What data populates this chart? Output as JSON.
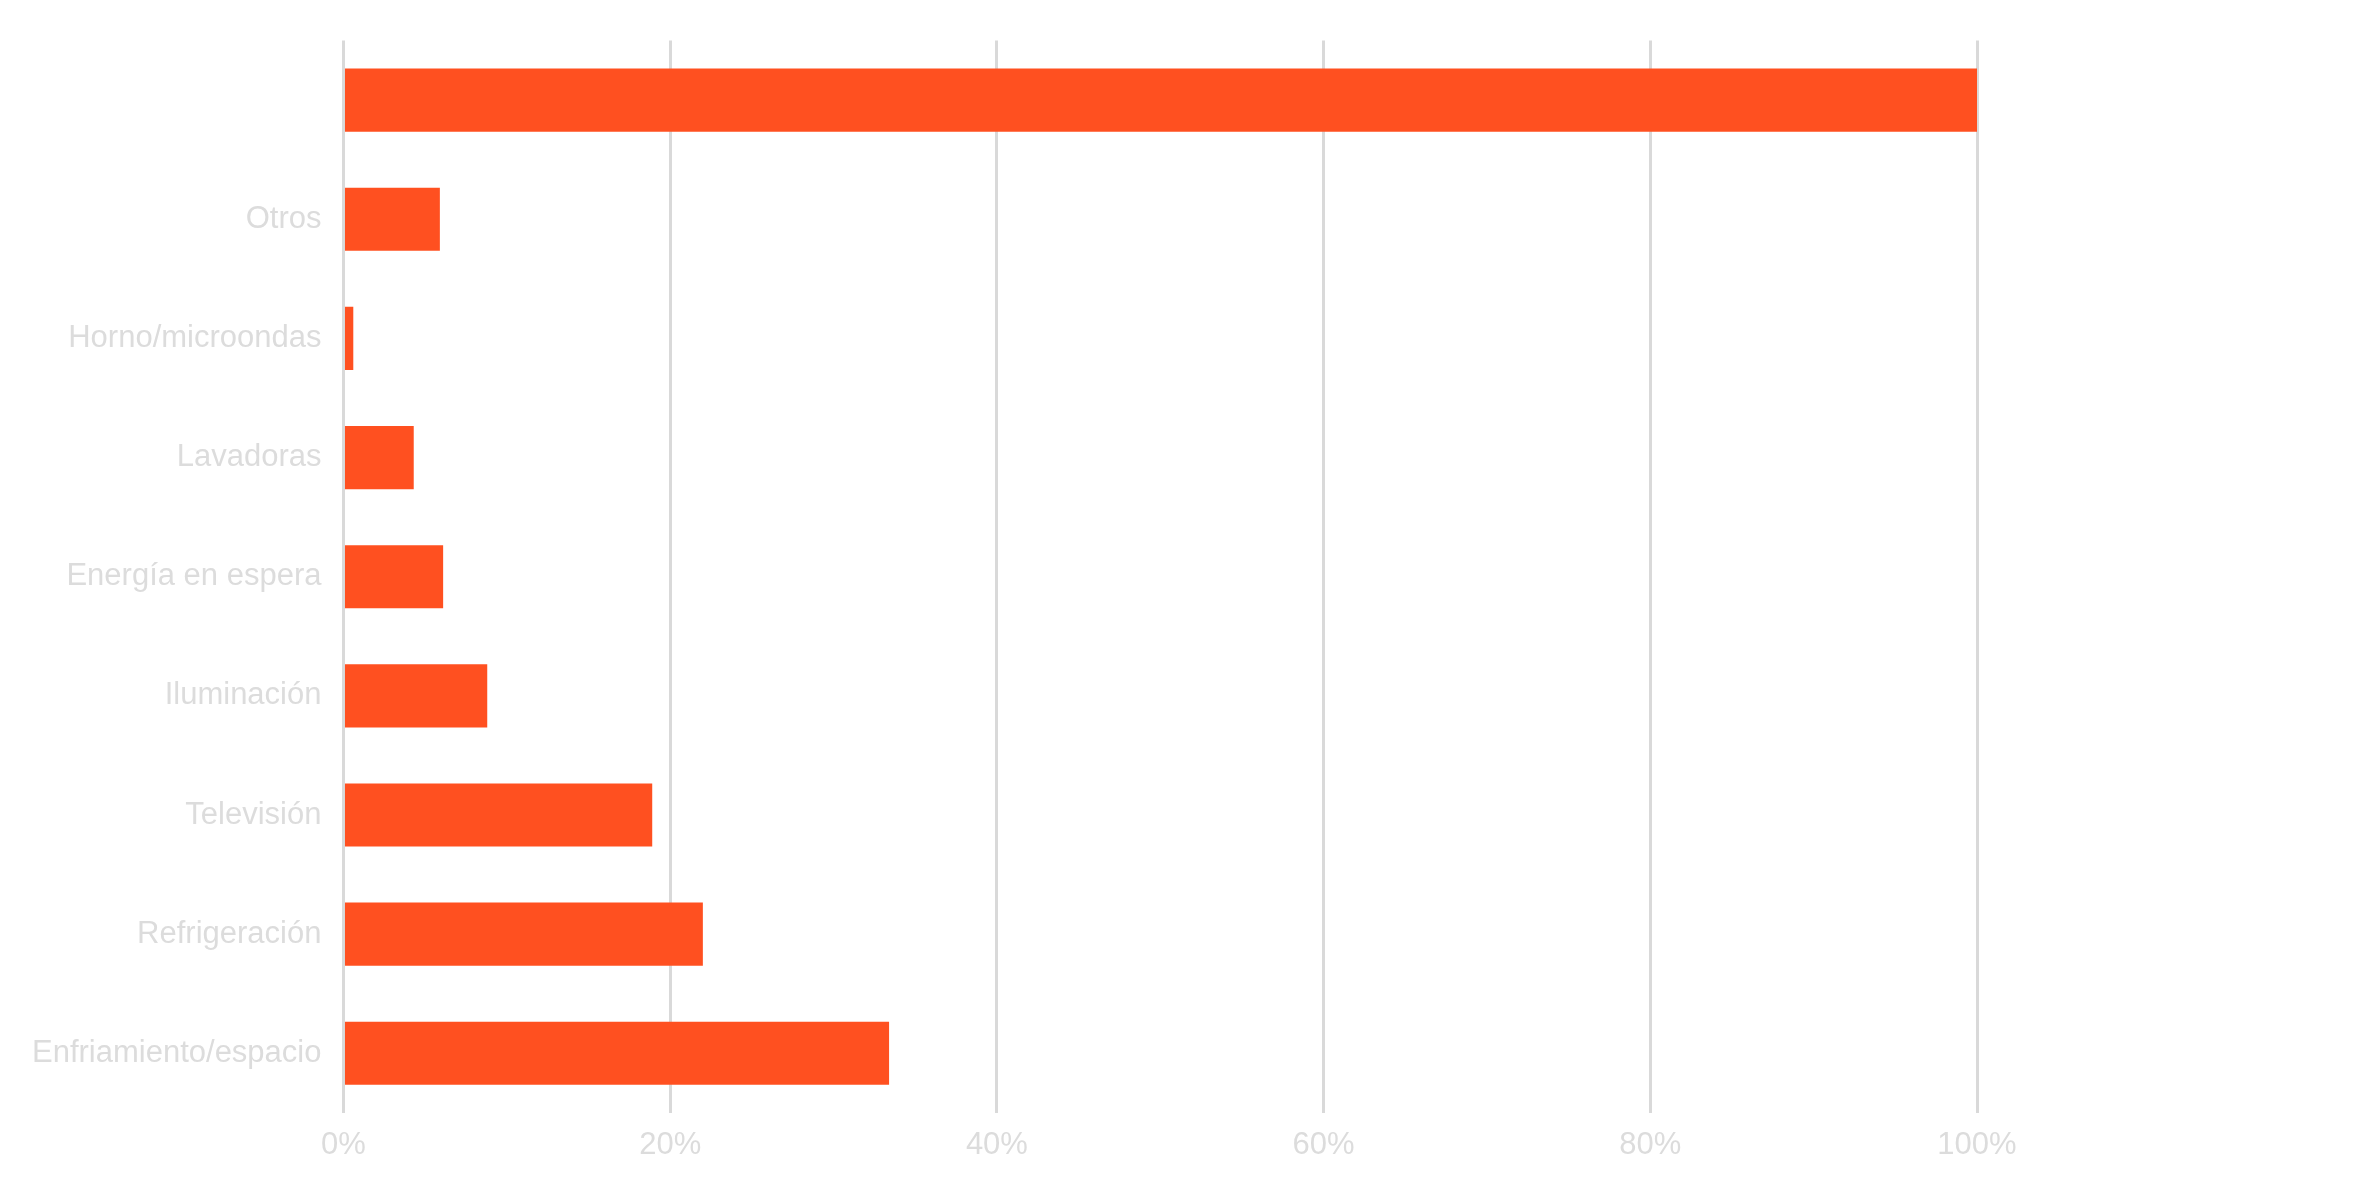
{
  "chart_data": {
    "type": "bar",
    "orientation": "horizontal",
    "categories": [
      null,
      "Otros",
      "Horno/microondas",
      "Lavadoras",
      "Energía en espera",
      "Iluminación",
      "Televisión",
      "Refrigeración",
      "Enfriamiento/espacio"
    ],
    "values": [
      100,
      5.9,
      0.6,
      4.3,
      6.1,
      8.8,
      18.9,
      22,
      33.4
    ],
    "color": "#ff5020",
    "xlim": [
      0,
      100
    ],
    "xticks": [
      {
        "value": 0,
        "label": "0%"
      },
      {
        "value": 20,
        "label": "20%"
      },
      {
        "value": 40,
        "label": "40%"
      },
      {
        "value": 60,
        "label": "60%"
      },
      {
        "value": 80,
        "label": "80%"
      },
      {
        "value": 100,
        "label": "100%"
      }
    ],
    "grid": "x",
    "legend": false
  }
}
